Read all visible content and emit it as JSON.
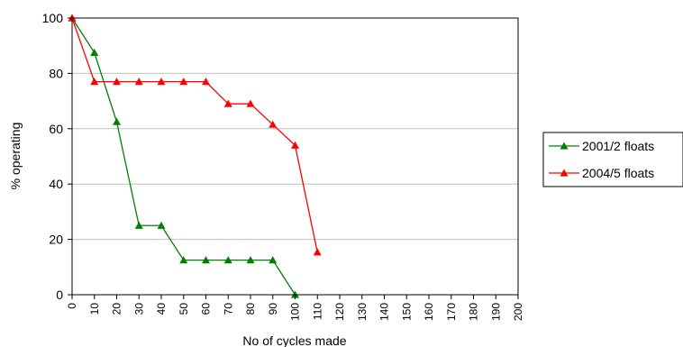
{
  "chart_data": {
    "type": "line",
    "xlabel": "No of cycles made",
    "ylabel": "% operating",
    "xlim": [
      0,
      200
    ],
    "ylim": [
      0,
      100
    ],
    "x_ticks": [
      "0",
      "10",
      "20",
      "30",
      "40",
      "50",
      "60",
      "70",
      "80",
      "90",
      "100",
      "110",
      "120",
      "130",
      "140",
      "150",
      "160",
      "170",
      "180",
      "190",
      "200"
    ],
    "y_ticks": [
      "0",
      "20",
      "40",
      "60",
      "80",
      "100"
    ],
    "grid": "horizontal",
    "legend_position": "right",
    "series": [
      {
        "name": "2001/2 floats",
        "color": "#008000",
        "marker": "triangle",
        "x": [
          0,
          10,
          20,
          30,
          40,
          50,
          60,
          70,
          80,
          90,
          100
        ],
        "values": [
          100,
          87.5,
          62.5,
          25,
          25,
          12.5,
          12.5,
          12.5,
          12.5,
          12.5,
          0
        ]
      },
      {
        "name": "2004/5 floats",
        "color": "#ff0000",
        "marker": "triangle",
        "x": [
          0,
          10,
          20,
          30,
          40,
          50,
          60,
          70,
          80,
          90,
          100,
          110
        ],
        "values": [
          100,
          77,
          77,
          77,
          77,
          77,
          77,
          69,
          69,
          61.5,
          54,
          15.4
        ]
      }
    ]
  }
}
